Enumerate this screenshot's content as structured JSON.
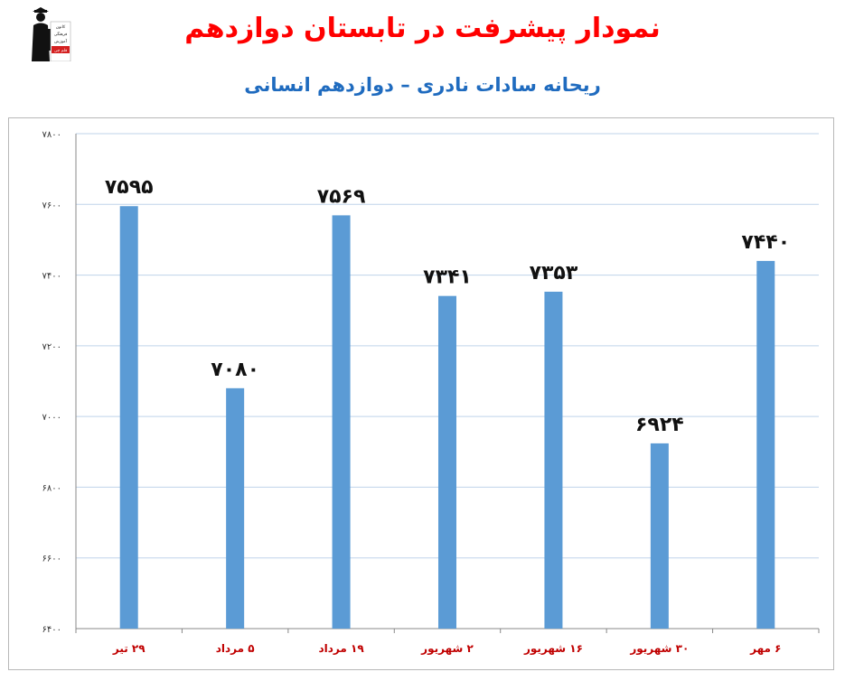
{
  "colors": {
    "title": "#ff0000",
    "subtitle": "#1f6bbf",
    "bar": "#5b9bd5",
    "gridline": "#bfd3ea",
    "x_tick_label": "#c00000"
  },
  "logo": {
    "icon": "graduate-figure-icon",
    "text_lines": [
      "کانون",
      "فرهنگی",
      "آموزش",
      "قلم چی"
    ]
  },
  "chart_data": {
    "type": "bar",
    "title": "نمودار پیشرفت در تابستان دوازدهم",
    "subtitle": "ریحانه سادات نادری – دوازدهم انسانی",
    "categories": [
      "۲۹ تیر",
      "۵ مرداد",
      "۱۹ مرداد",
      "۲ شهریور",
      "۱۶ شهریور",
      "۳۰ شهریور",
      "۶ مهر"
    ],
    "values": [
      7595,
      7080,
      7569,
      7341,
      7353,
      6924,
      7440
    ],
    "data_labels": [
      "۷۵۹۵",
      "۷۰۸۰",
      "۷۵۶۹",
      "۷۳۴۱",
      "۷۳۵۳",
      "۶۹۲۴",
      "۷۴۴۰"
    ],
    "ylim": [
      6400,
      7800
    ],
    "yticks": [
      6400,
      6600,
      6800,
      7000,
      7200,
      7400,
      7600,
      7800
    ],
    "ytick_labels": [
      "۶۴۰۰",
      "۶۶۰۰",
      "۶۸۰۰",
      "۷۰۰۰",
      "۷۲۰۰",
      "۷۴۰۰",
      "۷۶۰۰",
      "۷۸۰۰"
    ],
    "grid": true,
    "legend": "none"
  }
}
